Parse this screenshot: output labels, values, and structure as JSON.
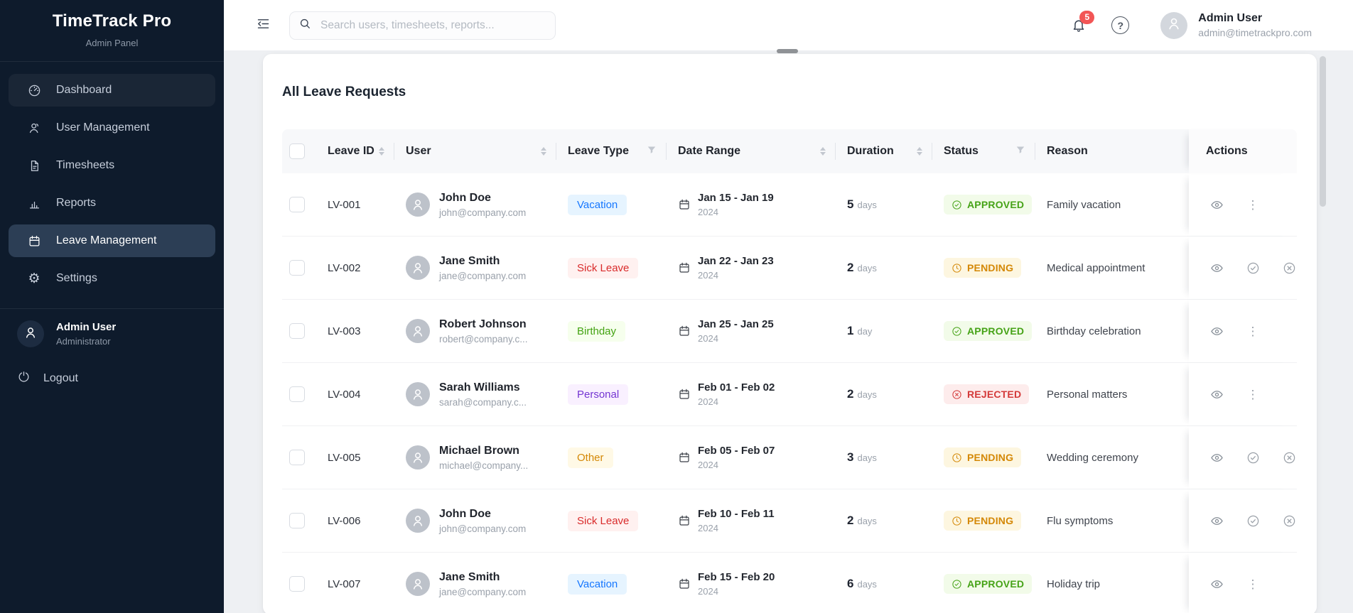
{
  "sidebar": {
    "title": "TimeTrack Pro",
    "subtitle": "Admin Panel",
    "items": [
      {
        "label": "Dashboard",
        "icon": "dashboard-icon",
        "state": "hover"
      },
      {
        "label": "User Management",
        "icon": "users-icon",
        "state": "normal"
      },
      {
        "label": "Timesheets",
        "icon": "timesheet-icon",
        "state": "normal"
      },
      {
        "label": "Reports",
        "icon": "bar-chart-icon",
        "state": "normal"
      },
      {
        "label": "Leave Management",
        "icon": "calendar-icon",
        "state": "active"
      },
      {
        "label": "Settings",
        "icon": "gear-icon",
        "state": "normal"
      }
    ],
    "user": {
      "name": "Admin User",
      "role": "Administrator"
    },
    "logout_label": "Logout"
  },
  "topbar": {
    "search_placeholder": "Search users, timesheets, reports...",
    "notification_count": "5",
    "user": {
      "name": "Admin User",
      "email": "admin@timetrackpro.com"
    }
  },
  "icons": {
    "gear": "⚙",
    "help": "?",
    "more": "⋮"
  },
  "main": {
    "title": "All Leave Requests",
    "table": {
      "columns": [
        {
          "key": "select",
          "label": "",
          "control": "checkbox"
        },
        {
          "key": "id",
          "label": "Leave ID",
          "control": "sort"
        },
        {
          "key": "user",
          "label": "User",
          "control": "sort"
        },
        {
          "key": "type",
          "label": "Leave Type",
          "control": "filter"
        },
        {
          "key": "dates",
          "label": "Date Range",
          "control": "sort"
        },
        {
          "key": "duration",
          "label": "Duration",
          "control": "sort"
        },
        {
          "key": "status",
          "label": "Status",
          "control": "filter"
        },
        {
          "key": "reason",
          "label": "Reason",
          "control": "none"
        },
        {
          "key": "actions",
          "label": "Actions",
          "control": "none"
        }
      ],
      "rows": [
        {
          "id": "LV-001",
          "user": {
            "name": "John Doe",
            "email": "john@company.com"
          },
          "type": {
            "label": "Vacation"
          },
          "dates": {
            "range": "Jan 15 - Jan 19",
            "year": "2024"
          },
          "duration": {
            "value": "5",
            "unit": "days"
          },
          "status": {
            "label": "APPROVED"
          },
          "reason": "Family vacation",
          "actions": [
            "view",
            "more"
          ]
        },
        {
          "id": "LV-002",
          "user": {
            "name": "Jane Smith",
            "email": "jane@company.com"
          },
          "type": {
            "label": "Sick Leave"
          },
          "dates": {
            "range": "Jan 22 - Jan 23",
            "year": "2024"
          },
          "duration": {
            "value": "2",
            "unit": "days"
          },
          "status": {
            "label": "PENDING"
          },
          "reason": "Medical appointment",
          "actions": [
            "view",
            "approve",
            "reject"
          ]
        },
        {
          "id": "LV-003",
          "user": {
            "name": "Robert Johnson",
            "email": "robert@company.c..."
          },
          "type": {
            "label": "Birthday"
          },
          "dates": {
            "range": "Jan 25 - Jan 25",
            "year": "2024"
          },
          "duration": {
            "value": "1",
            "unit": "day"
          },
          "status": {
            "label": "APPROVED"
          },
          "reason": "Birthday celebration",
          "actions": [
            "view",
            "more"
          ]
        },
        {
          "id": "LV-004",
          "user": {
            "name": "Sarah Williams",
            "email": "sarah@company.c..."
          },
          "type": {
            "label": "Personal"
          },
          "dates": {
            "range": "Feb 01 - Feb 02",
            "year": "2024"
          },
          "duration": {
            "value": "2",
            "unit": "days"
          },
          "status": {
            "label": "REJECTED"
          },
          "reason": "Personal matters",
          "actions": [
            "view",
            "more"
          ]
        },
        {
          "id": "LV-005",
          "user": {
            "name": "Michael Brown",
            "email": "michael@company..."
          },
          "type": {
            "label": "Other"
          },
          "dates": {
            "range": "Feb 05 - Feb 07",
            "year": "2024"
          },
          "duration": {
            "value": "3",
            "unit": "days"
          },
          "status": {
            "label": "PENDING"
          },
          "reason": "Wedding ceremony",
          "actions": [
            "view",
            "approve",
            "reject"
          ]
        },
        {
          "id": "LV-006",
          "user": {
            "name": "John Doe",
            "email": "john@company.com"
          },
          "type": {
            "label": "Sick Leave"
          },
          "dates": {
            "range": "Feb 10 - Feb 11",
            "year": "2024"
          },
          "duration": {
            "value": "2",
            "unit": "days"
          },
          "status": {
            "label": "PENDING"
          },
          "reason": "Flu symptoms",
          "actions": [
            "view",
            "approve",
            "reject"
          ]
        },
        {
          "id": "LV-007",
          "user": {
            "name": "Jane Smith",
            "email": "jane@company.com"
          },
          "type": {
            "label": "Vacation"
          },
          "dates": {
            "range": "Feb 15 - Feb 20",
            "year": "2024"
          },
          "duration": {
            "value": "6",
            "unit": "days"
          },
          "status": {
            "label": "APPROVED"
          },
          "reason": "Holiday trip",
          "actions": [
            "view",
            "more"
          ]
        }
      ]
    }
  },
  "colors": {
    "sidebar_bg": "#0e1b2c",
    "sidebar_active_bg": "#2c3e55",
    "accent": "#1677ff",
    "notification_badge": "#f25555",
    "leave_type_badges": {
      "Vacation": {
        "bg": "#e6f4ff",
        "fg": "#1677ff"
      },
      "Sick Leave": {
        "bg": "#fff1f0",
        "fg": "#d92b2b"
      },
      "Birthday": {
        "bg": "#f6ffed",
        "fg": "#43a312"
      },
      "Personal": {
        "bg": "#f9f0ff",
        "fg": "#7435d2"
      },
      "Other": {
        "bg": "#fff9e6",
        "fg": "#d48806"
      }
    },
    "status_badges": {
      "APPROVED": {
        "bg": "#f2fbe9",
        "fg": "#46a317",
        "icon": "check-circle-icon"
      },
      "PENDING": {
        "bg": "#fdf6e0",
        "fg": "#d48806",
        "icon": "clock-icon"
      },
      "REJECTED": {
        "bg": "#fdecec",
        "fg": "#d43a3a",
        "icon": "x-circle-icon"
      }
    }
  }
}
